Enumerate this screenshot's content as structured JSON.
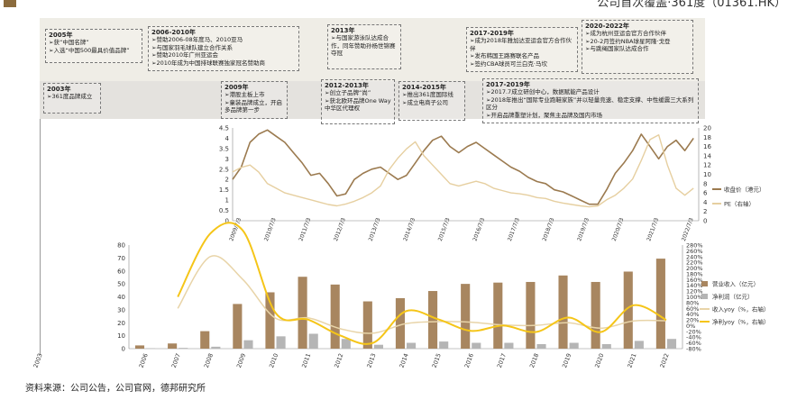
{
  "header": {
    "title": "公司首次覆盖·361度（01361.HK）"
  },
  "timeline": {
    "top": [
      {
        "year": "2005年",
        "items": [
          "获“中国名牌”",
          "入选“中国500最具价值品牌”"
        ]
      },
      {
        "year": "2006-2010年",
        "items": [
          "赞助2006-08年度马、2010亚马",
          "与国家羽毛球队建立合作关系",
          "赞助2010年广州亚运会",
          "2010年成为中国排球联赛独家冠名赞助商"
        ]
      },
      {
        "year": "2013年",
        "items": [
          "与国家游泳队达成合作，同年赞助孙杨世锦赛夺冠"
        ]
      },
      {
        "year": "2017-2019年",
        "items": [
          "成为2018年雅加达亚运会官方合作伙伴",
          "发布韩国王路赛联名产品",
          "签约CBA球员可兰白克·马坎"
        ]
      },
      {
        "year": "2020-2022年",
        "items": [
          "成为杭州亚运会官方合作伙伴",
          "20-2月签约NBA球星阿隆·戈登",
          "与跳绳国家队达成合作"
        ]
      }
    ],
    "bottom": [
      {
        "year": "2003年",
        "items": [
          "361度品牌成立"
        ]
      },
      {
        "year": "2009年",
        "items": [
          "港股主板上市",
          "童装品牌成立，开启多品牌第一步"
        ]
      },
      {
        "year": "2012-2013年",
        "items": [
          "创立子品牌“尚”",
          "获北欧环品牌One Way中华区代理权"
        ]
      },
      {
        "year": "2014-2015年",
        "items": [
          "推出361度国际线",
          "成立电商子公司"
        ]
      },
      {
        "year": "2017-2019年",
        "items": [
          "2017.7成立研创中心，数据赋能产品设计",
          "2018年推出“国际专业跑鞋家族”并以轻量竞速、稳定支撑、中性缓震三大系列区分",
          "开启品牌重塑计划，聚焦主品牌及国内市场"
        ]
      }
    ]
  },
  "chart_data": [
    {
      "type": "line",
      "x_tick_labels": [
        "2009/7/3",
        "2010/7/3",
        "2011/7/3",
        "2012/7/3",
        "2013/7/3",
        "2014/7/3",
        "2015/7/3",
        "2016/7/3",
        "2017/7/3",
        "2018/7/3",
        "2019/7/3",
        "2020/7/3",
        "2021/7/3",
        "2022/7/3"
      ],
      "y_left": {
        "ticks": [
          0,
          0.5,
          1,
          1.5,
          2,
          2.5,
          3,
          3.5,
          4,
          4.5
        ],
        "range": [
          0,
          4.5
        ]
      },
      "y_right": {
        "ticks": [
          0,
          2,
          4,
          6,
          8,
          10,
          12,
          14,
          16,
          18,
          20
        ],
        "range": [
          0,
          20
        ]
      },
      "series": [
        {
          "name": "收盘价（港元）",
          "axis": "left",
          "color": "#9B7A4F",
          "t": [
            2009.5,
            2009.75,
            2010.0,
            2010.25,
            2010.5,
            2010.75,
            2011.0,
            2011.25,
            2011.5,
            2011.75,
            2012.0,
            2012.25,
            2012.5,
            2012.75,
            2013.0,
            2013.25,
            2013.5,
            2013.75,
            2014.0,
            2014.25,
            2014.5,
            2014.75,
            2015.0,
            2015.25,
            2015.5,
            2015.75,
            2016.0,
            2016.25,
            2016.5,
            2016.75,
            2017.0,
            2017.25,
            2017.5,
            2017.75,
            2018.0,
            2018.25,
            2018.5,
            2018.75,
            2019.0,
            2019.25,
            2019.5,
            2019.75,
            2020.0,
            2020.25,
            2020.5,
            2020.75,
            2021.0,
            2021.25,
            2021.5,
            2021.75,
            2022.0,
            2022.25,
            2022.5,
            2022.75
          ],
          "values": [
            2.0,
            2.6,
            3.8,
            4.2,
            4.4,
            4.1,
            3.8,
            3.3,
            2.8,
            2.2,
            2.3,
            1.8,
            1.2,
            1.3,
            2.0,
            2.3,
            2.5,
            2.6,
            2.3,
            2.0,
            2.2,
            2.8,
            3.4,
            3.9,
            4.1,
            3.6,
            3.3,
            3.6,
            3.8,
            3.5,
            3.2,
            2.9,
            2.6,
            2.4,
            2.1,
            1.9,
            1.8,
            1.5,
            1.4,
            1.2,
            1.0,
            0.8,
            0.8,
            1.5,
            2.3,
            2.8,
            3.4,
            4.2,
            3.6,
            3.0,
            3.6,
            3.9,
            3.4,
            4.0
          ]
        },
        {
          "name": "PE（右轴）",
          "axis": "right",
          "color": "#E6CFA0",
          "t": [
            2009.5,
            2009.75,
            2010.0,
            2010.25,
            2010.5,
            2010.75,
            2011.0,
            2011.25,
            2011.5,
            2011.75,
            2012.0,
            2012.25,
            2012.5,
            2012.75,
            2013.0,
            2013.25,
            2013.5,
            2013.75,
            2014.0,
            2014.25,
            2014.5,
            2014.75,
            2015.0,
            2015.25,
            2015.5,
            2015.75,
            2016.0,
            2016.25,
            2016.5,
            2016.75,
            2017.0,
            2017.25,
            2017.5,
            2017.75,
            2018.0,
            2018.25,
            2018.5,
            2018.75,
            2019.0,
            2019.25,
            2019.5,
            2019.75,
            2020.0,
            2020.25,
            2020.5,
            2020.75,
            2021.0,
            2021.25,
            2021.5,
            2021.75,
            2022.0,
            2022.25,
            2022.5,
            2022.75
          ],
          "values": [
            10.5,
            11.5,
            12.0,
            10.5,
            8.0,
            7.0,
            6.0,
            5.5,
            5.0,
            4.5,
            4.0,
            3.5,
            3.2,
            3.6,
            4.2,
            5.0,
            6.0,
            7.5,
            11.0,
            13.5,
            15.5,
            17.0,
            14.0,
            12.0,
            10.0,
            8.0,
            7.5,
            8.0,
            8.5,
            8.0,
            7.0,
            6.5,
            6.0,
            5.8,
            5.5,
            5.0,
            4.8,
            4.2,
            3.8,
            3.5,
            3.2,
            3.0,
            3.2,
            4.5,
            5.5,
            7.0,
            9.0,
            13.0,
            17.5,
            18.5,
            12.0,
            7.0,
            5.5,
            7.0
          ]
        }
      ],
      "legend": "right"
    },
    {
      "type": "bar",
      "categories": [
        "2003",
        "2006",
        "2007",
        "2008",
        "2009",
        "2010",
        "2011",
        "2012",
        "2013",
        "2014",
        "2015",
        "2016",
        "2017",
        "2018",
        "2019",
        "2020",
        "2021",
        "2022"
      ],
      "y_left": {
        "ticks": [
          0,
          10,
          20,
          30,
          40,
          50,
          60,
          70,
          80
        ],
        "range": [
          0,
          80
        ]
      },
      "y_right": {
        "ticks": [
          "-80%",
          "-60%",
          "-40%",
          "-20%",
          "0%",
          "20%",
          "40%",
          "60%",
          "80%",
          "100%",
          "120%",
          "140%",
          "160%",
          "180%",
          "200%",
          "220%",
          "240%",
          "260%",
          "280%"
        ],
        "range": [
          -80,
          280
        ]
      },
      "series": [
        {
          "name": "营业收入（亿元）",
          "kind": "bar",
          "axis": "left",
          "color": "#A88660",
          "values": [
            null,
            2.5,
            4.0,
            13.5,
            34.5,
            43.5,
            55.5,
            49.5,
            36.5,
            39.0,
            44.5,
            50.0,
            51.0,
            51.5,
            56.5,
            51.5,
            59.5,
            69.5
          ]
        },
        {
          "name": "净利润（亿元）",
          "kind": "bar",
          "axis": "left",
          "color": "#B5B5B5",
          "values": [
            null,
            0.3,
            0.6,
            1.5,
            6.5,
            9.5,
            11.5,
            7.5,
            3.0,
            4.5,
            5.5,
            4.5,
            4.5,
            3.5,
            4.5,
            3.5,
            6.0,
            7.5
          ]
        },
        {
          "name": "收入yoy（%，右轴）",
          "kind": "line",
          "axis": "right",
          "color": "#E8D4A8",
          "values": [
            null,
            null,
            60,
            240,
            160,
            26,
            27,
            -11,
            -26,
            7,
            14,
            12,
            2,
            1,
            10,
            -9,
            16,
            17
          ]
        },
        {
          "name": "净利yoy（%，右轴）",
          "kind": "line",
          "axis": "right",
          "color": "#F5C518",
          "values": [
            null,
            null,
            100,
            320,
            330,
            45,
            21,
            -35,
            -60,
            50,
            22,
            -18,
            0,
            -22,
            28,
            -22,
            71,
            20
          ]
        }
      ],
      "legend": "right"
    }
  ],
  "source": "资料来源：公司公告，公司官网，德邦研究所"
}
